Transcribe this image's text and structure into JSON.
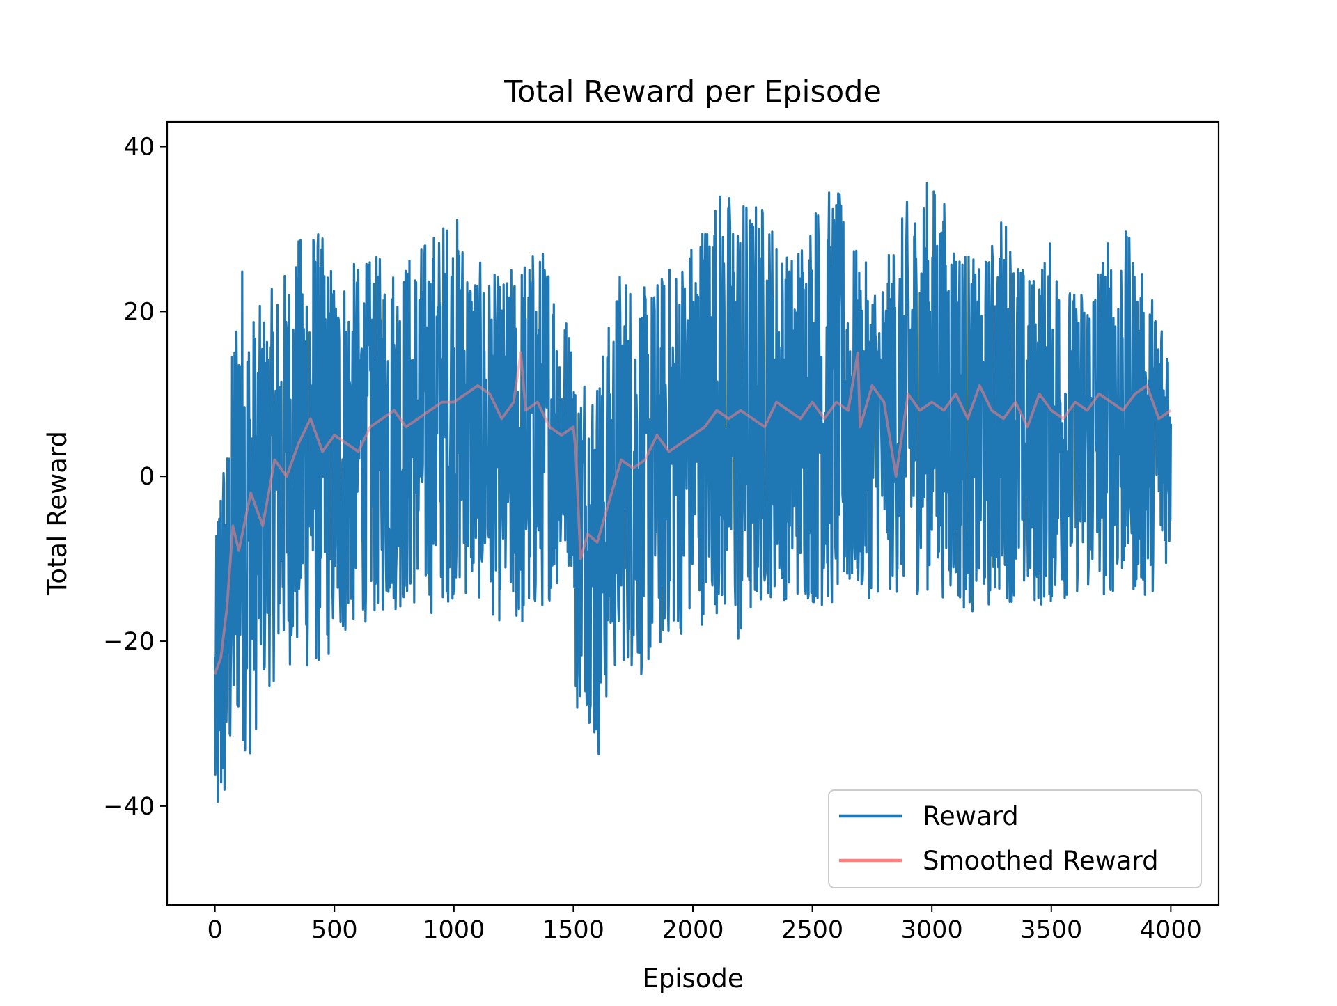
{
  "chart_data": {
    "type": "line",
    "title": "Total Reward per Episode",
    "xlabel": "Episode",
    "ylabel": "Total Reward",
    "xlim": [
      -200,
      4200
    ],
    "ylim": [
      -52,
      43
    ],
    "x_ticks": [
      0,
      500,
      1000,
      1500,
      2000,
      2500,
      3000,
      3500,
      4000
    ],
    "y_ticks": [
      -40,
      -20,
      0,
      20,
      40
    ],
    "x_tick_labels": [
      "0",
      "500",
      "1000",
      "1500",
      "2000",
      "2500",
      "3000",
      "3500",
      "4000"
    ],
    "y_tick_labels": [
      "−40",
      "−20",
      "0",
      "20",
      "40"
    ],
    "grid": false,
    "legend_position": "lower-right",
    "series": [
      {
        "name": "Reward",
        "color": "#1f77b4",
        "description": "noisy per-episode reward, approximate envelope",
        "x": [
          0,
          25,
          50,
          100,
          150,
          200,
          300,
          400,
          500,
          600,
          700,
          800,
          900,
          1000,
          1100,
          1200,
          1300,
          1400,
          1500,
          1510,
          1550,
          1600,
          1650,
          1700,
          1800,
          1900,
          2000,
          2100,
          2200,
          2300,
          2400,
          2500,
          2600,
          2700,
          2800,
          2900,
          3000,
          3100,
          3200,
          3300,
          3400,
          3500,
          3600,
          3700,
          3800,
          3900,
          4000
        ],
        "y_min": [
          -47,
          -48,
          -42,
          -35,
          -37,
          -29,
          -25,
          -27,
          -24,
          -20,
          -19,
          -18,
          -19,
          -17,
          -17,
          -20,
          -22,
          -17,
          -12,
          -31,
          -29,
          -38,
          -28,
          -25,
          -27,
          -22,
          -21,
          -19,
          -25,
          -17,
          -17,
          -18,
          -19,
          -17,
          -16,
          -17,
          -16,
          -18,
          -19,
          -17,
          -18,
          -18,
          -16,
          -17,
          -16,
          -17,
          -11
        ],
        "y_max": [
          -10,
          9,
          6,
          33,
          23,
          23,
          28,
          35,
          28,
          28,
          29,
          29,
          32,
          35,
          28,
          26,
          30,
          30,
          18,
          14,
          17,
          16,
          21,
          29,
          25,
          28,
          32,
          38,
          37,
          36,
          29,
          36,
          38,
          28,
          27,
          36,
          39,
          33,
          27,
          35,
          26,
          31,
          24,
          30,
          33,
          25,
          21
        ]
      },
      {
        "name": "Smoothed Reward",
        "color": "#ff7f7f",
        "x": [
          0,
          25,
          50,
          75,
          100,
          150,
          200,
          250,
          300,
          350,
          400,
          450,
          500,
          550,
          600,
          650,
          700,
          750,
          800,
          850,
          900,
          950,
          1000,
          1050,
          1100,
          1150,
          1200,
          1250,
          1280,
          1300,
          1350,
          1400,
          1450,
          1500,
          1510,
          1530,
          1560,
          1600,
          1650,
          1700,
          1750,
          1800,
          1850,
          1900,
          1950,
          2000,
          2050,
          2100,
          2150,
          2200,
          2250,
          2300,
          2350,
          2400,
          2450,
          2500,
          2550,
          2600,
          2650,
          2690,
          2700,
          2750,
          2800,
          2850,
          2900,
          2950,
          3000,
          3050,
          3100,
          3150,
          3200,
          3250,
          3300,
          3350,
          3400,
          3450,
          3500,
          3550,
          3600,
          3650,
          3700,
          3750,
          3800,
          3850,
          3900,
          3950,
          4000
        ],
        "y": [
          -24,
          -22,
          -16,
          -6,
          -9,
          -2,
          -6,
          2,
          0,
          4,
          7,
          3,
          5,
          4,
          3,
          6,
          7,
          8,
          6,
          7,
          8,
          9,
          9,
          10,
          11,
          10,
          7,
          9,
          15,
          8,
          9,
          6,
          5,
          6,
          3,
          -10,
          -7,
          -8,
          -3,
          2,
          1,
          2,
          5,
          3,
          4,
          5,
          6,
          8,
          7,
          8,
          7,
          6,
          9,
          8,
          7,
          9,
          7,
          9,
          8,
          15,
          6,
          11,
          9,
          0,
          10,
          8,
          9,
          8,
          10,
          7,
          11,
          8,
          7,
          9,
          6,
          10,
          8,
          7,
          9,
          8,
          10,
          9,
          8,
          10,
          11,
          7,
          8
        ]
      }
    ]
  }
}
